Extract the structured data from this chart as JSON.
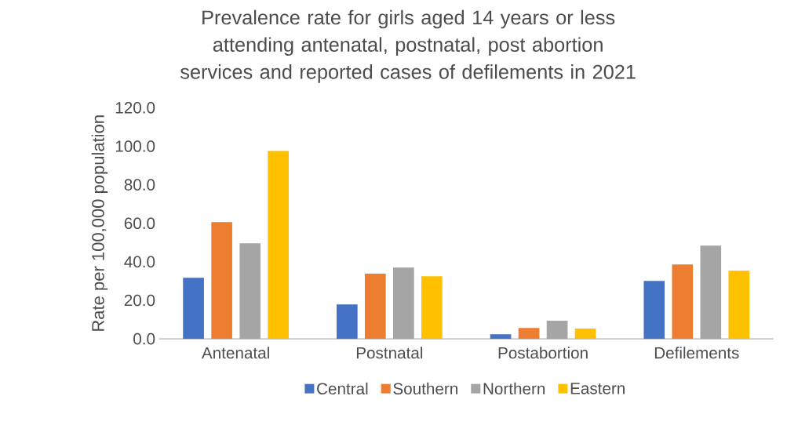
{
  "chart_data": {
    "type": "bar",
    "title": "Prevalence rate for girls aged 14 years or less attending antenatal, postnatal, post abortion services and reported cases of defilements in 2021",
    "ylabel": "Rate per 100,000 population",
    "categories": [
      "Antenatal",
      "Postnatal",
      "Postabortion",
      "Defilements"
    ],
    "series": [
      {
        "name": "Central",
        "color": "#4472c4",
        "values": [
          31.7,
          17.9,
          2.4,
          30.1
        ]
      },
      {
        "name": "Southern",
        "color": "#ed7d31",
        "values": [
          60.6,
          33.8,
          5.7,
          38.6
        ]
      },
      {
        "name": "Northern",
        "color": "#a5a5a5",
        "values": [
          49.6,
          37.0,
          9.4,
          48.4
        ]
      },
      {
        "name": "Eastern",
        "color": "#ffc000",
        "values": [
          97.6,
          32.5,
          5.3,
          35.4
        ]
      }
    ],
    "ylim": [
      0,
      120
    ],
    "yticks": [
      {
        "value": 0,
        "label": "0.0"
      },
      {
        "value": 20,
        "label": "20.0"
      },
      {
        "value": 40,
        "label": "40.0"
      },
      {
        "value": 60,
        "label": "60.0"
      },
      {
        "value": 80,
        "label": "80.0"
      },
      {
        "value": 100,
        "label": "100.0"
      },
      {
        "value": 120,
        "label": "120.0"
      }
    ],
    "legend": "bottom"
  }
}
